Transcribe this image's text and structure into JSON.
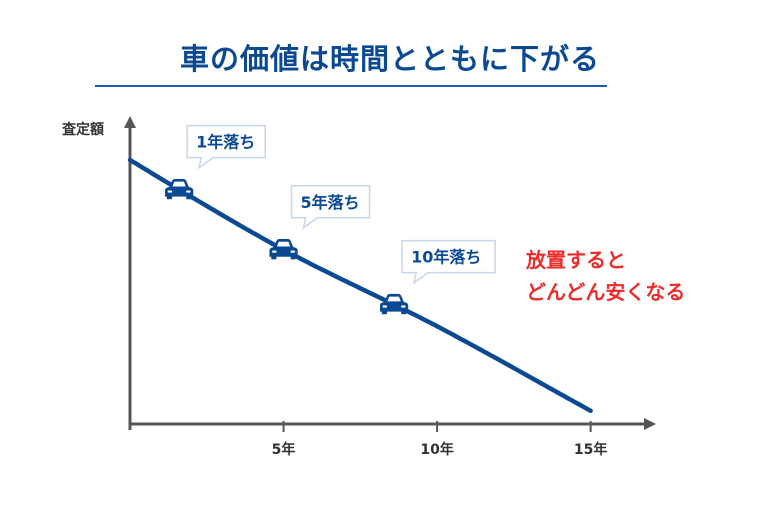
{
  "title": "車の価値は時間とともに下がる",
  "chart_data": {
    "type": "line",
    "ylabel": "査定額",
    "x_ticks": [
      {
        "x": 5,
        "label": "5年"
      },
      {
        "x": 10,
        "label": "10年"
      },
      {
        "x": 15,
        "label": "15年"
      }
    ],
    "xlim": [
      0,
      15.5
    ],
    "ylim": [
      0,
      100
    ],
    "series": [
      {
        "x": [
          0,
          2,
          5,
          10,
          15
        ],
        "y": [
          100,
          86,
          66,
          37,
          5
        ]
      }
    ],
    "annotations": [
      {
        "x": 1.6,
        "label": "1年落ち"
      },
      {
        "x": 5,
        "label": "5年落ち"
      },
      {
        "x": 8.6,
        "label": "10年落ち"
      }
    ],
    "grid": false,
    "line_color": "#0b4a93"
  },
  "note": {
    "lines": [
      "放置すると",
      "どんどん安くなる"
    ],
    "color": "#ee2b2b"
  }
}
